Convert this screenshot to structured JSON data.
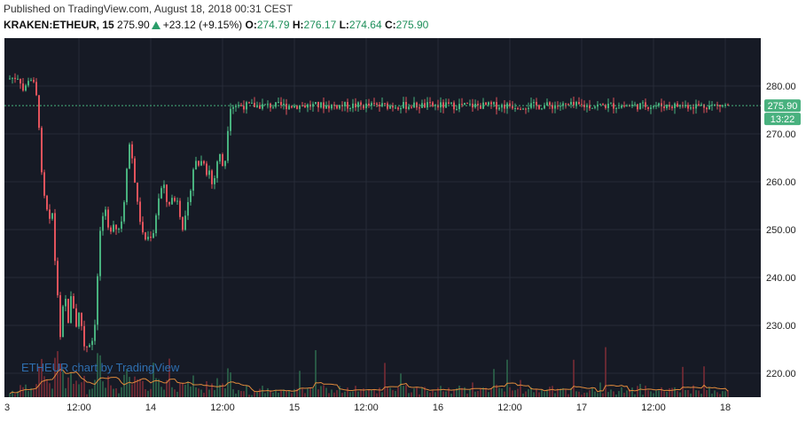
{
  "header": {
    "published_line": "Published on TradingView.com, August 18, 2018 00:31 CEST",
    "symbol": "KRAKEN:ETHEUR, 15",
    "last": "275.90",
    "change": "+23.12 (+9.15%)",
    "o_label": "O:",
    "o_value": "274.79",
    "h_label": "H:",
    "h_value": "276.17",
    "l_label": "L:",
    "l_value": "274.64",
    "c_label": "C:",
    "c_value": "275.90"
  },
  "price_badge": "275.90",
  "countdown_badge": "13:22",
  "watermark": "ETHEUR chart by TradingView",
  "colors": {
    "background": "#161a25",
    "grid": "#262b38",
    "up": "#48b17e",
    "down": "#e2535c",
    "ma": "#e08a3c",
    "price_line": "#46b27c",
    "badge": "#48b17e"
  },
  "chart_data": {
    "type": "candlestick",
    "symbol": "KRAKEN:ETHEUR",
    "interval": "15",
    "y_ticks": [
      "280.00",
      "270.00",
      "260.00",
      "250.00",
      "240.00",
      "230.00",
      "220.00"
    ],
    "x_ticks": [
      "3",
      "12:00",
      "14",
      "12:00",
      "15",
      "12:00",
      "16",
      "12:00",
      "17",
      "12:00",
      "18"
    ],
    "ylim": [
      215,
      290
    ],
    "last_price": 275.9,
    "approx_path": [
      [
        0,
        281.5
      ],
      [
        0.08,
        282.0
      ],
      [
        0.1,
        279.0
      ],
      [
        0.12,
        279.5
      ],
      [
        0.14,
        281.5
      ],
      [
        0.17,
        281.5
      ],
      [
        0.195,
        278.0
      ],
      [
        0.21,
        276.0
      ],
      [
        0.23,
        262.5
      ],
      [
        0.25,
        257.0
      ],
      [
        0.27,
        254.0
      ],
      [
        0.29,
        251.5
      ],
      [
        0.31,
        253.5
      ],
      [
        0.33,
        242.0
      ],
      [
        0.35,
        235.0
      ],
      [
        0.365,
        226.5
      ],
      [
        0.38,
        233.0
      ],
      [
        0.4,
        235.5
      ],
      [
        0.42,
        231.0
      ],
      [
        0.44,
        236.0
      ],
      [
        0.46,
        233.5
      ],
      [
        0.48,
        229.0
      ],
      [
        0.5,
        234.0
      ],
      [
        0.52,
        227.5
      ],
      [
        0.54,
        224.5
      ],
      [
        0.56,
        227.0
      ],
      [
        0.58,
        225.5
      ],
      [
        0.6,
        230.0
      ],
      [
        0.61,
        231.5
      ],
      [
        0.62,
        238.0
      ],
      [
        0.64,
        249.5
      ],
      [
        0.66,
        252.0
      ],
      [
        0.68,
        253.5
      ],
      [
        0.7,
        249.5
      ],
      [
        0.72,
        250.5
      ],
      [
        0.74,
        252.0
      ],
      [
        0.76,
        249.5
      ],
      [
        0.78,
        251.0
      ],
      [
        0.8,
        253.0
      ],
      [
        0.82,
        260.5
      ],
      [
        0.84,
        268.5
      ],
      [
        0.86,
        266.0
      ],
      [
        0.88,
        261.0
      ],
      [
        0.9,
        255.5
      ],
      [
        0.92,
        252.0
      ],
      [
        0.94,
        248.5
      ],
      [
        0.96,
        248.0
      ],
      [
        0.98,
        248.5
      ],
      [
        1.0,
        249.0
      ],
      [
        1.02,
        250.0
      ],
      [
        1.04,
        256.0
      ],
      [
        1.06,
        257.5
      ],
      [
        1.08,
        260.0
      ],
      [
        1.1,
        256.0
      ],
      [
        1.12,
        255.5
      ],
      [
        1.14,
        256.5
      ],
      [
        1.16,
        256.0
      ],
      [
        1.18,
        256.5
      ],
      [
        1.2,
        253.0
      ],
      [
        1.22,
        250.0
      ],
      [
        1.24,
        253.0
      ],
      [
        1.26,
        256.0
      ],
      [
        1.28,
        261.0
      ],
      [
        1.3,
        264.5
      ],
      [
        1.32,
        263.5
      ],
      [
        1.34,
        264.0
      ],
      [
        1.36,
        265.0
      ],
      [
        1.38,
        262.0
      ],
      [
        1.4,
        262.5
      ],
      [
        1.42,
        259.5
      ],
      [
        1.44,
        261.0
      ],
      [
        1.46,
        265.0
      ],
      [
        1.48,
        265.5
      ],
      [
        1.5,
        262.5
      ],
      [
        1.52,
        266.0
      ],
      [
        1.54,
        275.9
      ]
    ]
  }
}
